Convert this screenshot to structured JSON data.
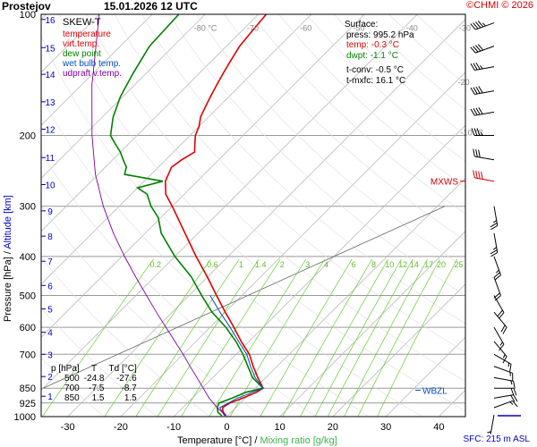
{
  "header": {
    "station": "Prostejov",
    "datetime": "15.01.2026 12 UTC",
    "copyright": "©CHMI © 2026"
  },
  "legend": {
    "title": "SKEW-T",
    "items": [
      {
        "label": "temperature",
        "color": "#e00000"
      },
      {
        "label": "virt.temp.",
        "color": "#e00000"
      },
      {
        "label": "dew point",
        "color": "#008000"
      },
      {
        "label": "wet bulb temp.",
        "color": "#0050c0"
      },
      {
        "label": "udpraft v.temp.",
        "color": "#8000a0"
      }
    ]
  },
  "surface": {
    "title": "Surface:",
    "press": "press: 995.2 hPa",
    "temp": "temp: -0.3 °C",
    "dwpt": "dwpt: -1.1 °C",
    "tconv": "t-conv: -0.5 °C",
    "tmxfc": "t-mxfc: 16.1 °C"
  },
  "levels_table": {
    "header": [
      "p [hPa]",
      "T",
      "Td [°C]"
    ],
    "rows": [
      [
        "500",
        "-24.8",
        "-27.6"
      ],
      [
        "700",
        "-7.5",
        "-8.7"
      ],
      [
        "850",
        "1.5",
        "1.5"
      ]
    ]
  },
  "labels": {
    "ylabel_pressure": "Pressure [hPa]",
    "ylabel_sep": "/",
    "ylabel_altitude": "Altitude [km]",
    "xlabel_temp": "Temperature [°C]",
    "xlabel_sep": "/",
    "xlabel_mix": "Mixing ratio [g/kg]",
    "mxws": "MXWS",
    "wbzl": "WBZL",
    "sfc": "SFC: 215 m ASL"
  },
  "colors": {
    "temperature": "#e00000",
    "dewpoint": "#008000",
    "wetbulb": "#0050c0",
    "parcel": "#8000a0",
    "mixing": "#66cc33",
    "isobar": "#999999",
    "isotherm": "#bbbbbb",
    "altitude": "#0000c8"
  },
  "chart_data": {
    "type": "line",
    "diagram": "skew-t",
    "xlim": [
      -35,
      45
    ],
    "ylim": [
      1000,
      100
    ],
    "y_scale": "log",
    "x_ticks": [
      -30,
      -20,
      -10,
      0,
      10,
      20,
      30,
      40
    ],
    "y_ticks": [
      100,
      200,
      300,
      400,
      500,
      600,
      700,
      850,
      925,
      1000
    ],
    "altitude_ticks": [
      {
        "km": 1,
        "p": 890
      },
      {
        "km": 2,
        "p": 795
      },
      {
        "km": 3,
        "p": 700
      },
      {
        "km": 4,
        "p": 617
      },
      {
        "km": 5,
        "p": 540
      },
      {
        "km": 6,
        "p": 472
      },
      {
        "km": 7,
        "p": 411
      },
      {
        "km": 8,
        "p": 356
      },
      {
        "km": 9,
        "p": 308
      },
      {
        "km": 10,
        "p": 265
      },
      {
        "km": 11,
        "p": 227
      },
      {
        "km": 12,
        "p": 193
      },
      {
        "km": 13,
        "p": 165
      },
      {
        "km": 14,
        "p": 141
      },
      {
        "km": 15,
        "p": 121
      },
      {
        "km": 16,
        "p": 103
      }
    ],
    "skewed_isotherm_labels": [
      -80,
      -70,
      -60,
      -50,
      -40,
      -30,
      -20,
      -10
    ],
    "mixing_ratios": [
      0.2,
      0.6,
      1,
      1.4,
      2,
      3,
      4,
      6,
      8,
      10,
      12,
      14,
      17,
      20,
      25
    ],
    "mixing_ratio_labels": [
      "0.2",
      "0.6",
      "1",
      "1.4",
      "2",
      "3",
      "4",
      "6",
      "8",
      "10",
      "12",
      "14",
      "17",
      "20",
      "25"
    ],
    "series": [
      {
        "name": "temperature",
        "p": [
          995,
          975,
          950,
          925,
          900,
          870,
          850,
          800,
          750,
          700,
          650,
          600,
          550,
          500,
          450,
          400,
          350,
          300,
          280,
          260,
          240,
          230,
          220,
          210,
          200,
          190,
          180,
          170,
          160,
          150,
          140,
          130,
          120,
          110,
          100
        ],
        "t": [
          -0.3,
          -1.5,
          -2.5,
          -2.0,
          -0.5,
          1.0,
          1.5,
          -1.5,
          -4.5,
          -7.5,
          -11.5,
          -15.5,
          -20.0,
          -24.8,
          -30.0,
          -36.0,
          -42.5,
          -50.0,
          -53.5,
          -56.0,
          -57.5,
          -57.0,
          -56.0,
          -57.5,
          -59.0,
          -60.0,
          -61.5,
          -62.5,
          -63.5,
          -64.5,
          -65.5,
          -66.5,
          -67.5,
          -68.0,
          -68.5
        ]
      },
      {
        "name": "dew point",
        "p": [
          995,
          975,
          950,
          925,
          900,
          870,
          850,
          800,
          750,
          700,
          650,
          600,
          550,
          500,
          450,
          400,
          350,
          320,
          300,
          280,
          270,
          260,
          250,
          240,
          230,
          220,
          210,
          200,
          180,
          160,
          140,
          120,
          100
        ],
        "t": [
          -1.1,
          -2.5,
          -3.5,
          -4.0,
          -2.5,
          -1.0,
          1.5,
          -2.5,
          -5.5,
          -8.7,
          -12.5,
          -17.0,
          -22.5,
          -27.6,
          -33.0,
          -40.0,
          -47.0,
          -50.5,
          -54.0,
          -57.0,
          -60.0,
          -56.5,
          -65.0,
          -66.0,
          -68.0,
          -70.0,
          -72.5,
          -75.0,
          -78.0,
          -80.5,
          -82.5,
          -84.5,
          -85.0
        ]
      },
      {
        "name": "wet bulb temp.",
        "p": [
          995,
          950,
          900,
          850,
          800,
          750,
          700,
          650,
          600,
          550,
          500
        ],
        "t": [
          -0.6,
          -3.0,
          -1.5,
          1.5,
          -2.0,
          -5.0,
          -8.0,
          -12.0,
          -16.2,
          -21.0,
          -26.0
        ]
      },
      {
        "name": "udpraft v.temp.",
        "p": [
          995,
          950,
          900,
          850,
          800,
          750,
          700,
          650,
          600,
          550,
          500,
          450,
          400,
          350,
          300,
          250,
          200,
          150,
          100
        ],
        "t": [
          -0.3,
          -3.5,
          -6.8,
          -9.8,
          -13.0,
          -16.4,
          -20.0,
          -24.0,
          -28.3,
          -33.0,
          -38.0,
          -43.5,
          -49.5,
          -56.0,
          -63.0,
          -70.5,
          -78.5,
          -88.0,
          -100.0
        ]
      }
    ],
    "wind_barbs": [
      {
        "p": 990,
        "dir": 190,
        "kt": 5
      },
      {
        "p": 950,
        "dir": 70,
        "kt": 15
      },
      {
        "p": 900,
        "dir": 80,
        "kt": 20
      },
      {
        "p": 850,
        "dir": 90,
        "kt": 20
      },
      {
        "p": 800,
        "dir": 100,
        "kt": 15
      },
      {
        "p": 750,
        "dir": 110,
        "kt": 15
      },
      {
        "p": 700,
        "dir": 120,
        "kt": 15
      },
      {
        "p": 650,
        "dir": 140,
        "kt": 15
      },
      {
        "p": 600,
        "dir": 150,
        "kt": 15
      },
      {
        "p": 550,
        "dir": 140,
        "kt": 20
      },
      {
        "p": 500,
        "dir": 150,
        "kt": 20
      },
      {
        "p": 450,
        "dir": 160,
        "kt": 20
      },
      {
        "p": 400,
        "dir": 160,
        "kt": 25
      },
      {
        "p": 350,
        "dir": 170,
        "kt": 25
      },
      {
        "p": 300,
        "dir": 170,
        "kt": 25
      },
      {
        "p": 260,
        "dir": 280,
        "kt": 40
      },
      {
        "p": 230,
        "dir": 280,
        "kt": 30
      },
      {
        "p": 200,
        "dir": 270,
        "kt": 35
      },
      {
        "p": 175,
        "dir": 260,
        "kt": 40
      },
      {
        "p": 155,
        "dir": 260,
        "kt": 40
      },
      {
        "p": 135,
        "dir": 260,
        "kt": 35
      },
      {
        "p": 120,
        "dir": 250,
        "kt": 40
      },
      {
        "p": 105,
        "dir": 250,
        "kt": 45
      }
    ],
    "mxws_p": 260,
    "wbzl_p": 860
  }
}
